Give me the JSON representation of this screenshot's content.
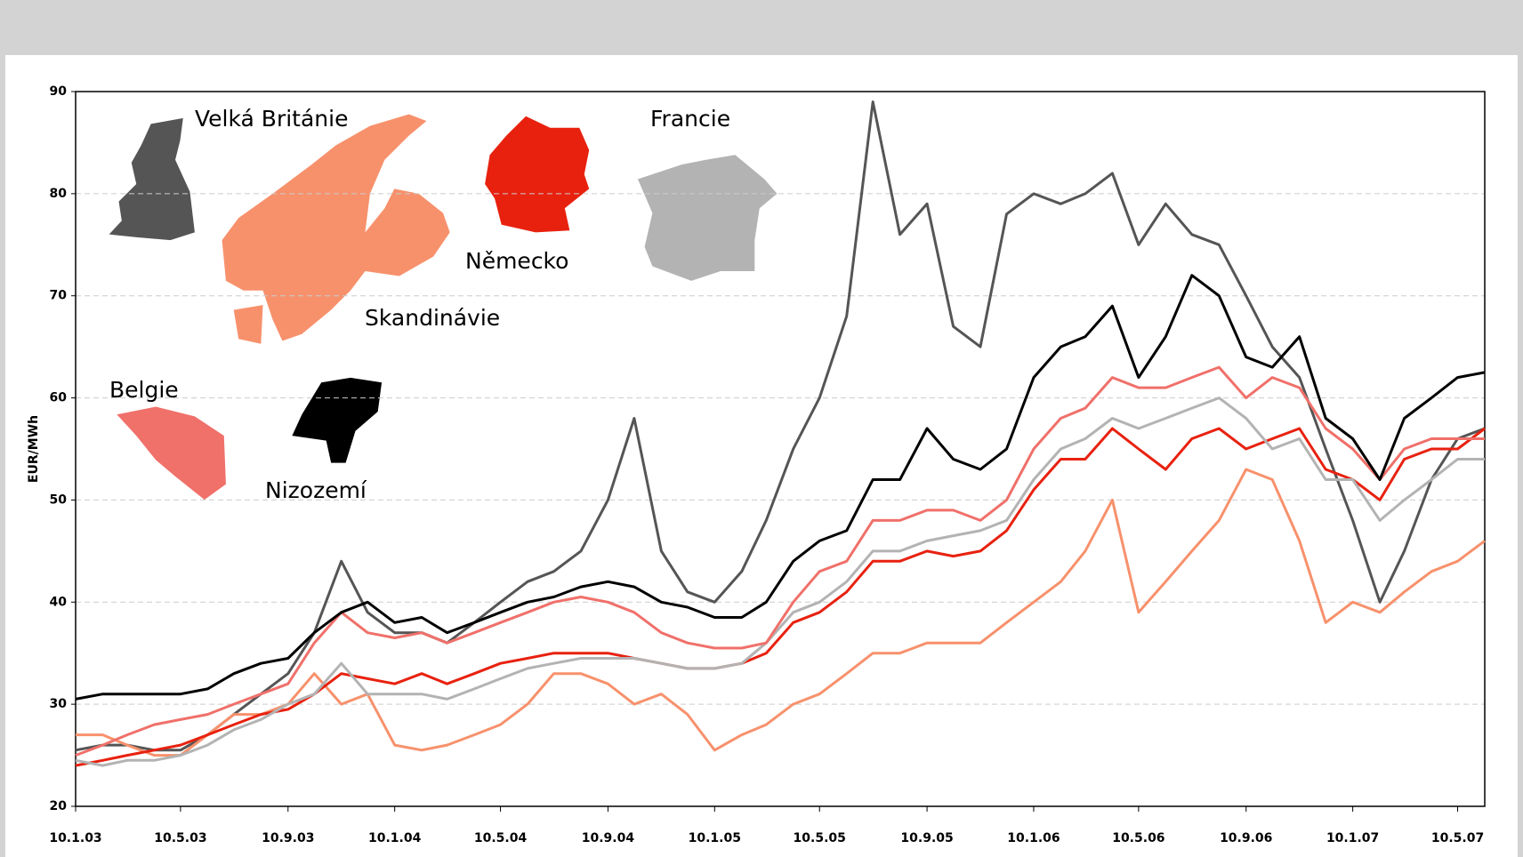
{
  "chart_data": {
    "type": "line",
    "y_label": "EUR/MWh",
    "x": [
      "10.1.03",
      "10.2.03",
      "10.3.03",
      "10.4.03",
      "10.5.03",
      "10.6.03",
      "10.7.03",
      "10.8.03",
      "10.9.03",
      "10.10.03",
      "10.11.03",
      "10.12.03",
      "10.1.04",
      "10.2.04",
      "10.3.04",
      "10.4.04",
      "10.5.04",
      "10.6.04",
      "10.7.04",
      "10.8.04",
      "10.9.04",
      "10.10.04",
      "10.11.04",
      "10.12.04",
      "10.1.05",
      "10.2.05",
      "10.3.05",
      "10.4.05",
      "10.5.05",
      "10.6.05",
      "10.7.05",
      "10.8.05",
      "10.9.05",
      "10.10.05",
      "10.11.05",
      "10.12.05",
      "10.1.06",
      "10.2.06",
      "10.3.06",
      "10.4.06",
      "10.5.06",
      "10.6.06",
      "10.7.06",
      "10.8.06",
      "10.9.06",
      "10.10.06",
      "10.11.06",
      "10.12.06",
      "10.1.07",
      "10.2.07",
      "10.3.07",
      "10.4.07",
      "10.5.07",
      "10.6.07"
    ],
    "series": [
      {
        "name": "Velká Británie",
        "color": "#555555",
        "values": [
          25.5,
          26,
          26,
          25.5,
          25.5,
          27,
          29,
          31,
          33,
          37,
          44,
          39,
          37,
          37,
          36,
          38,
          40,
          42,
          43,
          45,
          50,
          58,
          45,
          41,
          40,
          43,
          48,
          55,
          60,
          68,
          89,
          76,
          79,
          67,
          65,
          78,
          80,
          79,
          80,
          82,
          75,
          79,
          76,
          75,
          70,
          65,
          62,
          55,
          48,
          40,
          45,
          52,
          56,
          57
        ]
      },
      {
        "name": "Skandinávie",
        "color": "#f7916c",
        "values": [
          27,
          27,
          26,
          25,
          25,
          27,
          29,
          29,
          30,
          33,
          30,
          31,
          26,
          25.5,
          26,
          27,
          28,
          30,
          33,
          33,
          32,
          30,
          31,
          29,
          25.5,
          27,
          28,
          30,
          31,
          33,
          35,
          35,
          36,
          36,
          36,
          38,
          40,
          42,
          45,
          50,
          39,
          42,
          45,
          48,
          53,
          52,
          46,
          38,
          40,
          39,
          41,
          43,
          44,
          46
        ]
      },
      {
        "name": "Německo",
        "color": "#e8210f",
        "values": [
          24,
          24.5,
          25,
          25.5,
          26,
          27,
          28,
          29,
          29.5,
          31,
          33,
          32.5,
          32,
          33,
          32,
          33,
          34,
          34.5,
          35,
          35,
          35,
          34.5,
          34,
          33.5,
          33.5,
          34,
          35,
          38,
          39,
          41,
          44,
          44,
          45,
          44.5,
          45,
          47,
          51,
          54,
          54,
          57,
          55,
          53,
          56,
          57,
          55,
          56,
          57,
          53,
          52,
          50,
          54,
          55,
          55,
          57
        ]
      },
      {
        "name": "Francie",
        "color": "#b3b3b3",
        "values": [
          24.5,
          24,
          24.5,
          24.5,
          25,
          26,
          27.5,
          28.5,
          30,
          31,
          34,
          31,
          31,
          31,
          30.5,
          31.5,
          32.5,
          33.5,
          34,
          34.5,
          34.5,
          34.5,
          34,
          33.5,
          33.5,
          34,
          36,
          39,
          40,
          42,
          45,
          45,
          46,
          46.5,
          47,
          48,
          52,
          55,
          56,
          58,
          57,
          58,
          59,
          60,
          58,
          55,
          56,
          52,
          52,
          48,
          50,
          52,
          54,
          54
        ]
      },
      {
        "name": "Belgie",
        "color": "#f0706a",
        "values": [
          25,
          26,
          27,
          28,
          28.5,
          29,
          30,
          31,
          32,
          36,
          39,
          37,
          36.5,
          37,
          36,
          37,
          38,
          39,
          40,
          40.5,
          40,
          39,
          37,
          36,
          35.5,
          35.5,
          36,
          40,
          43,
          44,
          48,
          48,
          49,
          49,
          48,
          50,
          55,
          58,
          59,
          62,
          61,
          61,
          62,
          63,
          60,
          62,
          61,
          57,
          55,
          52,
          55,
          56,
          56,
          56
        ]
      },
      {
        "name": "Nizozemí",
        "color": "#000000",
        "values": [
          30.5,
          31,
          31,
          31,
          31,
          31.5,
          33,
          34,
          34.5,
          37,
          39,
          40,
          38,
          38.5,
          37,
          38,
          39,
          40,
          40.5,
          41.5,
          42,
          41.5,
          40,
          39.5,
          38.5,
          38.5,
          40,
          44,
          46,
          47,
          52,
          52,
          57,
          54,
          53,
          55,
          62,
          65,
          66,
          69,
          62,
          66,
          72,
          70,
          64,
          63,
          66,
          58,
          56,
          52,
          58,
          60,
          62,
          62.5
        ]
      }
    ],
    "xlim": [
      "10.1.03",
      "10.6.07"
    ],
    "xticks": [
      "10.1.03",
      "10.5.03",
      "10.9.03",
      "10.1.04",
      "10.5.04",
      "10.9.04",
      "10.1.05",
      "10.5.05",
      "10.9.05",
      "10.1.06",
      "10.5.06",
      "10.9.06",
      "10.1.07",
      "10.5.07"
    ],
    "ylim": [
      20,
      90
    ],
    "yticks": [
      20,
      30,
      40,
      50,
      60,
      70,
      80,
      90
    ],
    "grid": true
  }
}
